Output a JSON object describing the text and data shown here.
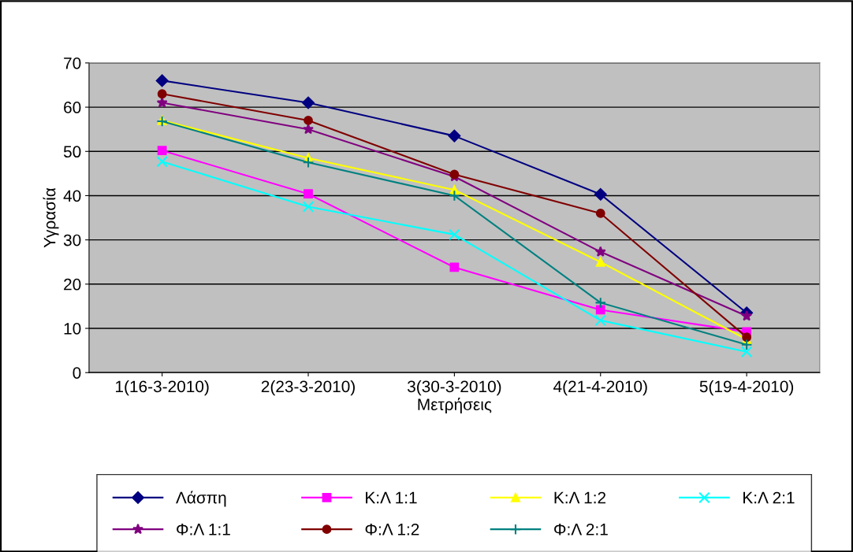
{
  "chart_data": {
    "type": "line",
    "xlabel": "Μετρήσεις",
    "ylabel": "Υγρασία",
    "categories": [
      "1(16-3-2010)",
      "2(23-3-2010)",
      "3(30-3-2010)",
      "4(21-4-2010)",
      "5(19-4-2010)"
    ],
    "ylim": [
      0,
      70
    ],
    "yticks": [
      0,
      10,
      20,
      30,
      40,
      50,
      60,
      70
    ],
    "grid": "y",
    "legend": "bottom",
    "line_style": "solid",
    "series": [
      {
        "name": "Λάσπη",
        "color": "#000080",
        "marker": "diamond",
        "values": [
          66,
          61,
          53.5,
          40.3,
          13.5
        ]
      },
      {
        "name": "Κ:Λ 1:1",
        "color": "#ff00ff",
        "marker": "square",
        "values": [
          50.2,
          40.4,
          23.8,
          14.2,
          9.2
        ]
      },
      {
        "name": "Κ:Λ 1:2",
        "color": "#ffff00",
        "marker": "triangle",
        "values": [
          57,
          48.5,
          41.3,
          25,
          7.5
        ]
      },
      {
        "name": "Κ:Λ 2:1",
        "color": "#00ffff",
        "marker": "cross",
        "values": [
          47.7,
          37.5,
          31.2,
          11.8,
          4.7
        ]
      },
      {
        "name": "Φ:Λ 1:1",
        "color": "#800080",
        "marker": "star",
        "values": [
          61,
          55,
          44.3,
          27.3,
          12.8
        ]
      },
      {
        "name": "Φ:Λ 1:2",
        "color": "#800000",
        "marker": "circle",
        "values": [
          63,
          57,
          44.8,
          36,
          8
        ]
      },
      {
        "name": "Φ:Λ 2:1",
        "color": "#008080",
        "marker": "plus",
        "values": [
          56.8,
          47.5,
          40,
          15.8,
          6.3
        ]
      }
    ]
  }
}
